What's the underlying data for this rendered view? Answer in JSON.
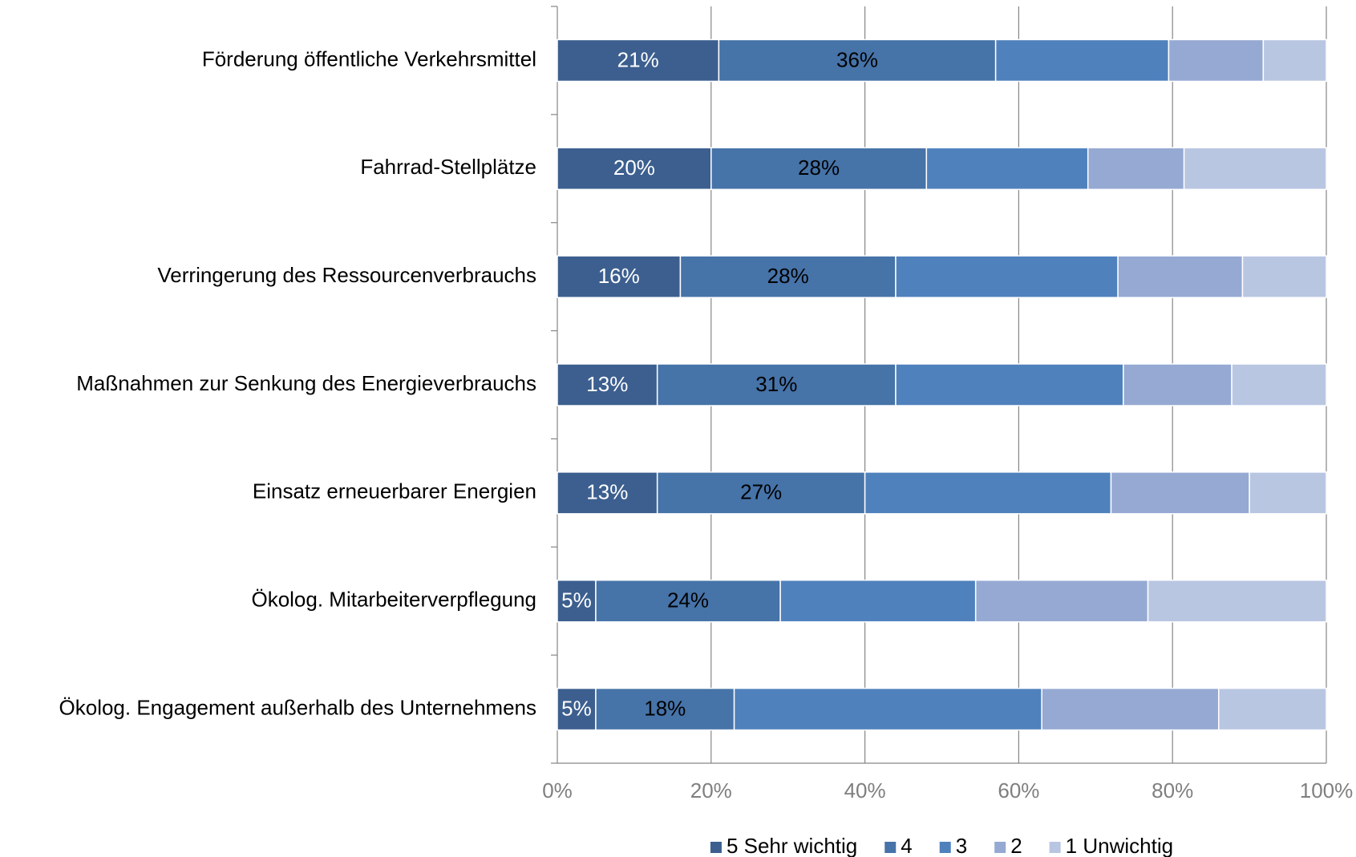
{
  "chart_data": {
    "type": "stacked-barh",
    "categories": [
      "Förderung öffentliche Verkehrsmittel",
      "Fahrrad-Stellplätze",
      "Verringerung des Ressourcenverbrauchs",
      "Maßnahmen zur Senkung des Energieverbrauchs",
      "Einsatz erneuerbarer Energien",
      "Ökolog. Mitarbeiterverpflegung",
      "Ökolog. Engagement außerhalb des Unternehmens"
    ],
    "series": [
      {
        "name": "5 Sehr wichtig",
        "color": "#3c5f8f",
        "label_color": "#ffffff",
        "values": [
          21,
          20,
          16,
          13,
          13,
          5,
          5
        ],
        "value_labels": [
          "21%",
          "20%",
          "16%",
          "13%",
          "13%",
          "5%",
          "5%"
        ]
      },
      {
        "name": "4",
        "color": "#4673a8",
        "label_color": "#000000",
        "values": [
          36,
          28,
          28,
          31,
          27,
          24,
          18
        ],
        "value_labels": [
          "36%",
          "28%",
          "28%",
          "31%",
          "27%",
          "24%",
          "18%"
        ]
      },
      {
        "name": "3",
        "color": "#4f81bd",
        "values": [
          22.5,
          21,
          28.9,
          29.6,
          32,
          25.4,
          40
        ]
      },
      {
        "name": "2",
        "color": "#95a9d3",
        "values": [
          12.3,
          12.5,
          16.2,
          14.1,
          18,
          22.4,
          23
        ]
      },
      {
        "name": "1 Unwichtig",
        "color": "#b9c6e2",
        "values": [
          8.2,
          18.5,
          10.9,
          12.3,
          10,
          23.2,
          14
        ]
      }
    ],
    "xlim": [
      0,
      100
    ],
    "xticks": [
      {
        "value": 0,
        "label": "0%"
      },
      {
        "value": 20,
        "label": "20%"
      },
      {
        "value": 40,
        "label": "40%"
      },
      {
        "value": 60,
        "label": "60%"
      },
      {
        "value": 80,
        "label": "80%"
      },
      {
        "value": 100,
        "label": "100%"
      }
    ],
    "grid": true,
    "legend": "bottom"
  }
}
